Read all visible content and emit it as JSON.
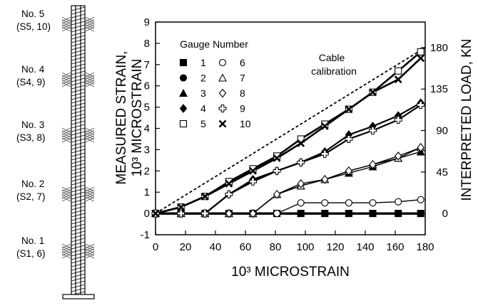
{
  "cable_diagram": {
    "gauges": [
      {
        "name": "No. 5",
        "ids": "(S5, 10)"
      },
      {
        "name": "No. 4",
        "ids": "(S4, 9)"
      },
      {
        "name": "No. 3",
        "ids": "(S3, 8)"
      },
      {
        "name": "No. 2",
        "ids": "(S2, 7)"
      },
      {
        "name": "No. 1",
        "ids": "(S1, 6)"
      }
    ]
  },
  "chart_data": {
    "type": "line",
    "xlabel": "10³ MICROSTRAIN",
    "ylabel_line1": "MEASURED STRAIN,",
    "ylabel_line2": "10³ MICROSTRAIN",
    "y2label": "INTERPRETED LOAD, KN",
    "xlim": [
      0,
      180
    ],
    "ylim": [
      -1,
      9
    ],
    "y2lim": [
      0,
      180
    ],
    "x_ticks": [
      0,
      20,
      40,
      60,
      80,
      100,
      120,
      140,
      160,
      180
    ],
    "y_ticks": [
      -1,
      0,
      1,
      2,
      3,
      4,
      5,
      6,
      7,
      8,
      9
    ],
    "y2_ticks": [
      0,
      45,
      90,
      135,
      180
    ],
    "grid": false,
    "legend_title": "Gauge Number",
    "legend_location": "top-left",
    "x": [
      0,
      17,
      33,
      49,
      65,
      81,
      97,
      113,
      129,
      145,
      162,
      177
    ],
    "series": [
      {
        "name": "1",
        "marker": "filled-square",
        "values": [
          0,
          0,
          0,
          0,
          0,
          0,
          0,
          0,
          0,
          0,
          0,
          0
        ]
      },
      {
        "name": "2",
        "marker": "filled-circle",
        "values": [
          0,
          0,
          0,
          0,
          0,
          0,
          0,
          0,
          0,
          0,
          0,
          0
        ]
      },
      {
        "name": "3",
        "marker": "filled-triangle",
        "values": [
          0,
          0,
          0,
          0,
          0,
          0.9,
          1.3,
          1.6,
          1.9,
          2.2,
          2.6,
          2.9
        ]
      },
      {
        "name": "4",
        "marker": "filled-diamond",
        "values": [
          0,
          0,
          0,
          0.9,
          1.6,
          2.0,
          2.4,
          2.9,
          3.7,
          4.1,
          4.6,
          5.2
        ]
      },
      {
        "name": "5",
        "marker": "open-square",
        "values": [
          0,
          0.3,
          0.8,
          1.5,
          2.1,
          2.7,
          3.5,
          4.2,
          4.9,
          5.7,
          6.7,
          7.6
        ]
      },
      {
        "name": "6",
        "marker": "open-circle",
        "values": [
          0,
          0,
          0,
          0,
          0,
          0,
          0.5,
          0.5,
          0.5,
          0.5,
          0.55,
          0.65
        ]
      },
      {
        "name": "7",
        "marker": "open-triangle",
        "values": [
          0,
          0,
          0,
          0,
          0,
          0.9,
          1.3,
          1.6,
          2.0,
          2.3,
          2.6,
          3.1
        ]
      },
      {
        "name": "8",
        "marker": "open-diamond",
        "values": [
          0,
          0,
          0,
          0,
          0,
          0.9,
          1.4,
          1.6,
          2.0,
          2.3,
          2.7,
          3.1
        ]
      },
      {
        "name": "9",
        "marker": "open-cross",
        "values": [
          0,
          0,
          0,
          0.9,
          1.5,
          2.0,
          2.4,
          2.8,
          3.5,
          3.9,
          4.4,
          5.1
        ]
      },
      {
        "name": "10",
        "marker": "x-mark",
        "values": [
          0,
          0.3,
          0.8,
          1.4,
          2.0,
          2.6,
          3.3,
          4.1,
          4.9,
          5.7,
          6.3,
          7.3
        ]
      }
    ],
    "calibration_line": {
      "label_line1": "Cable",
      "label_line2": "calibration",
      "x": [
        0,
        180
      ],
      "y": [
        0,
        7.8
      ]
    }
  }
}
